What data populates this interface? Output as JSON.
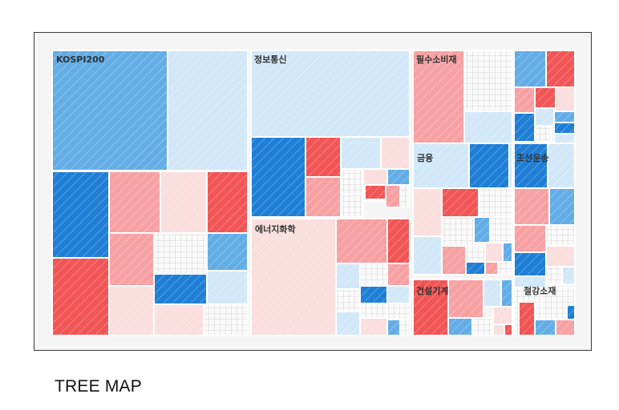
{
  "caption": "TREE MAP",
  "palette": {
    "blue_dark": "#1f7fd6",
    "blue_mid": "#63ade6",
    "blue_light": "#d2e8f8",
    "red_dark": "#f15555",
    "red_mid": "#f7a1a3",
    "red_light": "#fbdede",
    "white_grid": "#fafafa",
    "background": "#f5f5f5",
    "border": "#3b3b3b",
    "label_color": "#333333"
  },
  "chart_data": {
    "type": "treemap",
    "sectors": [
      {
        "name": "KOSPI200"
      },
      {
        "name": "정보통신"
      },
      {
        "name": "필수소비재"
      },
      {
        "name": "금융"
      },
      {
        "name": "조선운송"
      },
      {
        "name": "에너지화학"
      },
      {
        "name": "건설기계"
      },
      {
        "name": "철강소재"
      }
    ]
  }
}
